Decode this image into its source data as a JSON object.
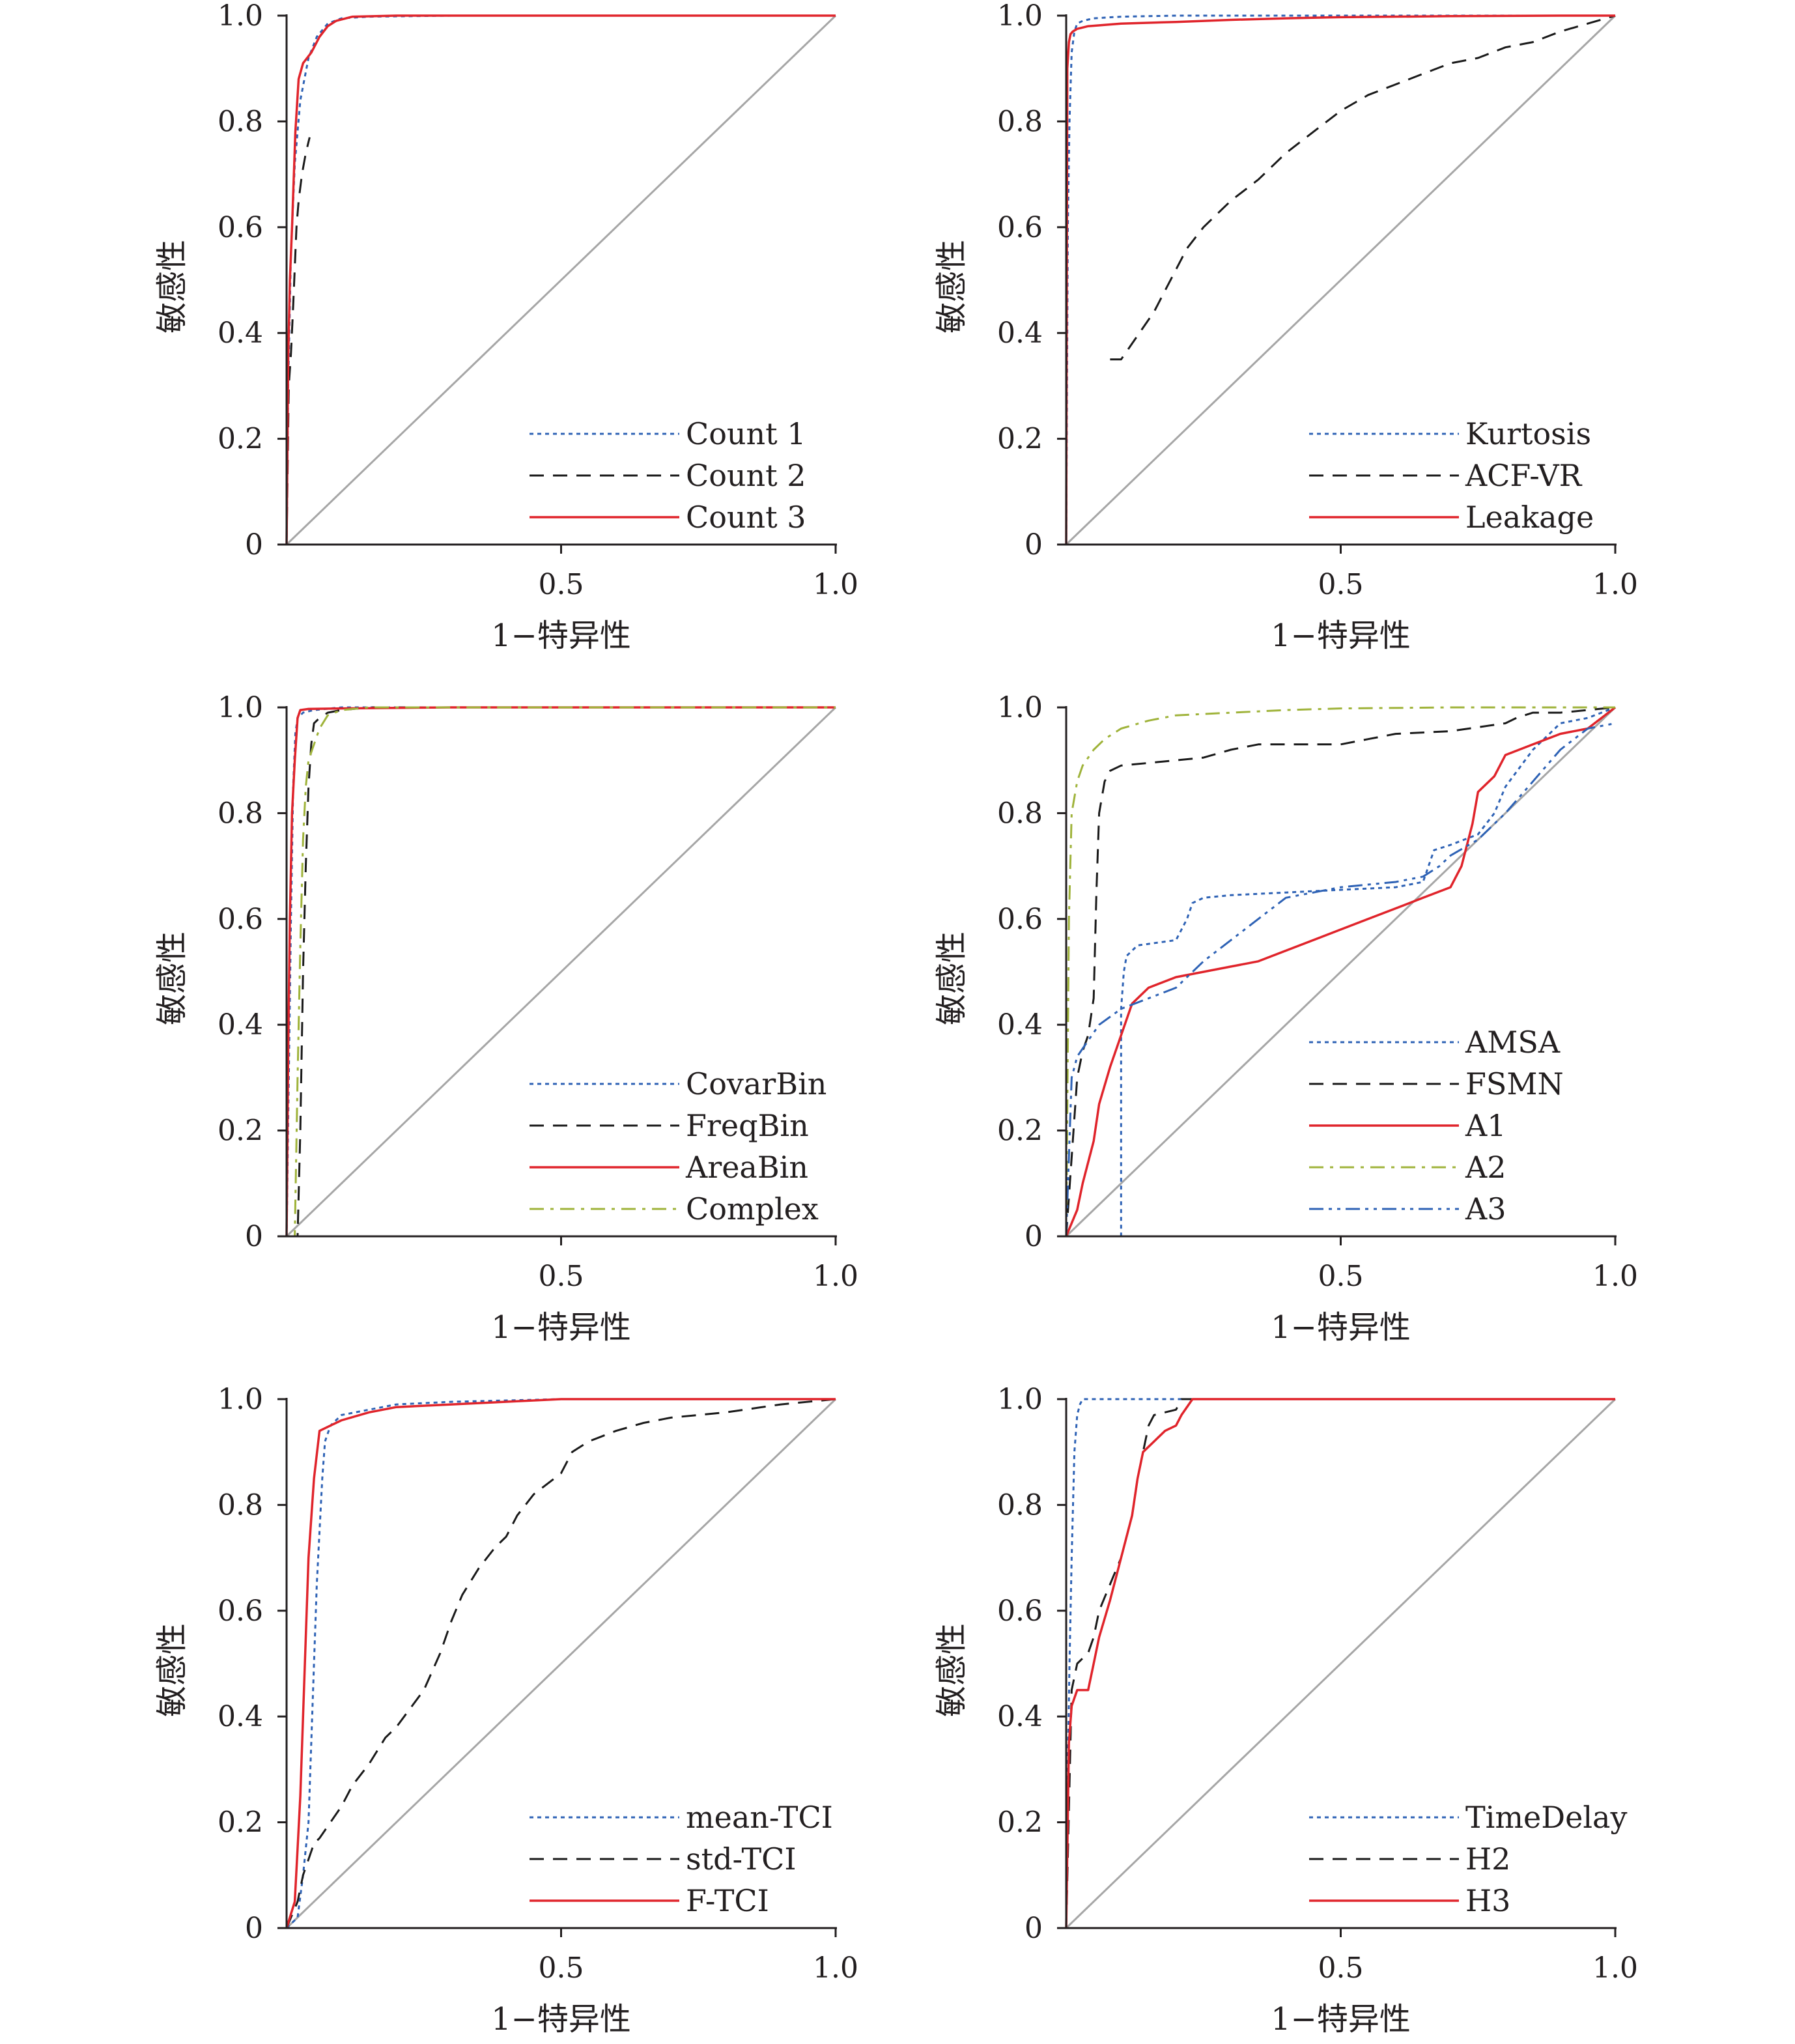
{
  "colors": {
    "axis": "#231f20",
    "diagonal": "#a6a6a6",
    "red": "#e0242b",
    "blue": "#2e62b5",
    "black": "#1a1a1a",
    "olive": "#9fb33a"
  },
  "chart_data": [
    {
      "type": "line",
      "xlabel": "1−特异性",
      "ylabel": "敏感性",
      "xlim": [
        0,
        1
      ],
      "ylim": [
        0,
        1
      ],
      "xticks": [
        "0.5",
        "1.0"
      ],
      "yticks": [
        "0",
        "0.2",
        "0.4",
        "0.6",
        "0.8",
        "1.0"
      ],
      "legend_position": "bottom-right",
      "diagonal": true,
      "series": [
        {
          "name": "Count 1",
          "color": "blue",
          "dash": "dotted",
          "x": [
            0,
            0.003,
            0.008,
            0.015,
            0.025,
            0.04,
            0.055,
            0.075,
            0.1,
            0.15,
            0.3,
            1.0
          ],
          "y": [
            0,
            0.3,
            0.55,
            0.72,
            0.84,
            0.92,
            0.96,
            0.985,
            0.995,
            0.998,
            1.0,
            1.0
          ]
        },
        {
          "name": "Count 2",
          "color": "black",
          "dash": "dashed",
          "x": [
            0,
            0.004,
            0.008,
            0.012,
            0.018,
            0.022,
            0.028,
            0.035,
            0.042
          ],
          "y": [
            0,
            0.3,
            0.36,
            0.45,
            0.6,
            0.65,
            0.7,
            0.74,
            0.77
          ]
        },
        {
          "name": "Count 3",
          "color": "red",
          "dash": "solid",
          "x": [
            0,
            0.003,
            0.006,
            0.01,
            0.016,
            0.022,
            0.03,
            0.045,
            0.06,
            0.075,
            0.09,
            0.12,
            0.2,
            1.0
          ],
          "y": [
            0,
            0.35,
            0.5,
            0.6,
            0.78,
            0.88,
            0.91,
            0.93,
            0.96,
            0.98,
            0.99,
            0.998,
            1.0,
            1.0
          ]
        }
      ]
    },
    {
      "type": "line",
      "xlabel": "1−特异性",
      "ylabel": "敏感性",
      "xlim": [
        0,
        1
      ],
      "ylim": [
        0,
        1
      ],
      "xticks": [
        "0.5",
        "1.0"
      ],
      "yticks": [
        "0",
        "0.2",
        "0.4",
        "0.6",
        "0.8",
        "1.0"
      ],
      "legend_position": "bottom-right",
      "diagonal": true,
      "series": [
        {
          "name": "Kurtosis",
          "color": "blue",
          "dash": "dotted",
          "x": [
            0,
            0.003,
            0.006,
            0.01,
            0.015,
            0.02,
            0.03,
            0.05,
            0.1,
            0.2,
            1.0
          ],
          "y": [
            0,
            0.6,
            0.8,
            0.93,
            0.97,
            0.985,
            0.99,
            0.995,
            0.998,
            1.0,
            1.0
          ]
        },
        {
          "name": "ACF-VR",
          "color": "black",
          "dash": "dashed",
          "x": [
            0.08,
            0.1,
            0.12,
            0.14,
            0.16,
            0.18,
            0.2,
            0.22,
            0.25,
            0.28,
            0.3,
            0.35,
            0.4,
            0.45,
            0.5,
            0.55,
            0.6,
            0.65,
            0.7,
            0.75,
            0.8,
            0.85,
            0.9,
            0.95,
            1.0
          ],
          "y": [
            0.35,
            0.35,
            0.38,
            0.41,
            0.44,
            0.48,
            0.52,
            0.56,
            0.6,
            0.63,
            0.65,
            0.69,
            0.74,
            0.78,
            0.82,
            0.85,
            0.87,
            0.89,
            0.91,
            0.92,
            0.94,
            0.95,
            0.97,
            0.985,
            1.0
          ]
        },
        {
          "name": "Leakage",
          "color": "red",
          "dash": "solid",
          "x": [
            0,
            0.002,
            0.005,
            0.008,
            0.012,
            0.02,
            0.04,
            0.1,
            0.2,
            0.3,
            0.4,
            0.5,
            0.7,
            0.9,
            1.0
          ],
          "y": [
            0,
            0.9,
            0.95,
            0.965,
            0.97,
            0.975,
            0.98,
            0.985,
            0.988,
            0.992,
            0.995,
            0.997,
            0.999,
            1.0,
            1.0
          ]
        }
      ]
    },
    {
      "type": "line",
      "xlabel": "1−特异性",
      "ylabel": "敏感性",
      "xlim": [
        0,
        1
      ],
      "ylim": [
        0,
        1
      ],
      "xticks": [
        "0.5",
        "1.0"
      ],
      "yticks": [
        "0",
        "0.2",
        "0.4",
        "0.6",
        "0.8",
        "1.0"
      ],
      "legend_position": "bottom-right",
      "diagonal": true,
      "series": [
        {
          "name": "CovarBin",
          "color": "blue",
          "dash": "dotted",
          "x": [
            0,
            0.004,
            0.008,
            0.012,
            0.016,
            0.02,
            0.03,
            0.05,
            0.1,
            1.0
          ],
          "y": [
            0,
            0.3,
            0.6,
            0.85,
            0.95,
            0.98,
            0.99,
            0.995,
            1.0,
            1.0
          ]
        },
        {
          "name": "FreqBin",
          "color": "black",
          "dash": "dashed",
          "x": [
            0,
            0.02,
            0.025,
            0.03,
            0.035,
            0.04,
            0.045,
            0.05,
            0.06,
            0.075,
            0.1,
            0.15,
            1.0
          ],
          "y": [
            0,
            0.0,
            0.2,
            0.5,
            0.7,
            0.85,
            0.93,
            0.97,
            0.98,
            0.99,
            0.995,
            1.0,
            1.0
          ]
        },
        {
          "name": "AreaBin",
          "color": "red",
          "dash": "solid",
          "x": [
            0,
            0.003,
            0.006,
            0.01,
            0.015,
            0.02,
            0.025,
            0.04,
            0.1,
            0.3,
            1.0
          ],
          "y": [
            0,
            0.35,
            0.6,
            0.8,
            0.9,
            0.98,
            0.995,
            0.997,
            0.998,
            1.0,
            1.0
          ]
        },
        {
          "name": "Complex",
          "color": "olive",
          "dash": "dashdot",
          "x": [
            0,
            0.015,
            0.02,
            0.025,
            0.03,
            0.035,
            0.04,
            0.05,
            0.06,
            0.075,
            0.1,
            0.15,
            1.0
          ],
          "y": [
            0,
            0.0,
            0.3,
            0.55,
            0.75,
            0.85,
            0.9,
            0.93,
            0.96,
            0.985,
            0.995,
            1.0,
            1.0
          ]
        }
      ]
    },
    {
      "type": "line",
      "xlabel": "1−特异性",
      "ylabel": "敏感性",
      "xlim": [
        0,
        1
      ],
      "ylim": [
        0,
        1
      ],
      "xticks": [
        "0.5",
        "1.0"
      ],
      "yticks": [
        "0",
        "0.2",
        "0.4",
        "0.6",
        "0.8",
        "1.0"
      ],
      "legend_position": "bottom-right",
      "diagonal": true,
      "series": [
        {
          "name": "AMSA",
          "color": "blue",
          "dash": "dotted",
          "x": [
            0,
            0.1,
            0.1,
            0.105,
            0.11,
            0.13,
            0.2,
            0.22,
            0.23,
            0.25,
            0.3,
            0.4,
            0.5,
            0.6,
            0.65,
            0.67,
            0.7,
            0.75,
            0.78,
            0.8,
            0.85,
            0.9,
            0.95,
            1.0
          ],
          "y": [
            0,
            0.0,
            0.43,
            0.5,
            0.53,
            0.55,
            0.56,
            0.6,
            0.63,
            0.64,
            0.645,
            0.65,
            0.655,
            0.66,
            0.67,
            0.73,
            0.74,
            0.76,
            0.8,
            0.85,
            0.92,
            0.97,
            0.98,
            1.0
          ]
        },
        {
          "name": "FSMN",
          "color": "black",
          "dash": "dashed",
          "x": [
            0,
            0.02,
            0.03,
            0.04,
            0.05,
            0.055,
            0.06,
            0.07,
            0.08,
            0.1,
            0.15,
            0.2,
            0.25,
            0.3,
            0.35,
            0.4,
            0.5,
            0.55,
            0.6,
            0.7,
            0.8,
            0.82,
            0.85,
            0.9,
            0.95,
            1.0
          ],
          "y": [
            0,
            0.3,
            0.35,
            0.38,
            0.45,
            0.65,
            0.8,
            0.86,
            0.88,
            0.89,
            0.895,
            0.9,
            0.905,
            0.92,
            0.93,
            0.93,
            0.93,
            0.94,
            0.95,
            0.955,
            0.97,
            0.98,
            0.99,
            0.99,
            0.995,
            1.0
          ]
        },
        {
          "name": "A1",
          "color": "red",
          "dash": "solid",
          "x": [
            0,
            0.02,
            0.03,
            0.05,
            0.06,
            0.08,
            0.1,
            0.12,
            0.15,
            0.2,
            0.25,
            0.3,
            0.35,
            0.4,
            0.5,
            0.55,
            0.6,
            0.65,
            0.7,
            0.72,
            0.74,
            0.75,
            0.78,
            0.8,
            0.85,
            0.9,
            0.95,
            1.0
          ],
          "y": [
            0,
            0.05,
            0.1,
            0.18,
            0.25,
            0.32,
            0.38,
            0.44,
            0.47,
            0.49,
            0.5,
            0.51,
            0.52,
            0.54,
            0.58,
            0.6,
            0.62,
            0.64,
            0.66,
            0.7,
            0.78,
            0.84,
            0.87,
            0.91,
            0.93,
            0.95,
            0.96,
            1.0
          ]
        },
        {
          "name": "A2",
          "color": "olive",
          "dash": "dashdot",
          "x": [
            0,
            0.005,
            0.01,
            0.02,
            0.03,
            0.05,
            0.07,
            0.1,
            0.15,
            0.2,
            0.3,
            0.4,
            0.5,
            0.7,
            1.0
          ],
          "y": [
            0,
            0.6,
            0.8,
            0.86,
            0.89,
            0.92,
            0.94,
            0.96,
            0.975,
            0.985,
            0.99,
            0.995,
            0.998,
            1.0,
            1.0
          ]
        },
        {
          "name": "A3",
          "color": "blue",
          "dash": "dashdotdot",
          "x": [
            0,
            0.01,
            0.02,
            0.04,
            0.06,
            0.1,
            0.15,
            0.2,
            0.25,
            0.3,
            0.35,
            0.4,
            0.5,
            0.6,
            0.65,
            0.68,
            0.7,
            0.75,
            0.8,
            0.85,
            0.9,
            0.95,
            1.0
          ],
          "y": [
            0,
            0.3,
            0.34,
            0.37,
            0.4,
            0.43,
            0.45,
            0.47,
            0.52,
            0.56,
            0.6,
            0.64,
            0.66,
            0.67,
            0.68,
            0.7,
            0.72,
            0.75,
            0.8,
            0.86,
            0.92,
            0.96,
            0.97
          ]
        }
      ]
    },
    {
      "type": "line",
      "xlabel": "1−特异性",
      "ylabel": "敏感性",
      "xlim": [
        0,
        1
      ],
      "ylim": [
        0,
        1
      ],
      "xticks": [
        "0.5",
        "1.0"
      ],
      "yticks": [
        "0",
        "0.2",
        "0.4",
        "0.6",
        "0.8",
        "1.0"
      ],
      "legend_position": "bottom-right",
      "diagonal": true,
      "series": [
        {
          "name": "mean-TCI",
          "color": "blue",
          "dash": "dotted",
          "x": [
            0,
            0.02,
            0.03,
            0.04,
            0.045,
            0.05,
            0.055,
            0.06,
            0.065,
            0.07,
            0.08,
            0.1,
            0.15,
            0.2,
            0.3,
            0.5,
            1.0
          ],
          "y": [
            0,
            0.02,
            0.1,
            0.2,
            0.35,
            0.5,
            0.65,
            0.75,
            0.85,
            0.92,
            0.95,
            0.97,
            0.98,
            0.99,
            0.995,
            1.0,
            1.0
          ]
        },
        {
          "name": "std-TCI",
          "color": "black",
          "dash": "dashed",
          "x": [
            0,
            0.02,
            0.03,
            0.05,
            0.06,
            0.08,
            0.1,
            0.12,
            0.15,
            0.18,
            0.2,
            0.25,
            0.28,
            0.3,
            0.32,
            0.35,
            0.38,
            0.4,
            0.42,
            0.45,
            0.5,
            0.52,
            0.55,
            0.6,
            0.65,
            0.7,
            0.8,
            0.9,
            1.0
          ],
          "y": [
            0,
            0.05,
            0.1,
            0.16,
            0.17,
            0.2,
            0.23,
            0.27,
            0.31,
            0.36,
            0.38,
            0.45,
            0.52,
            0.58,
            0.63,
            0.68,
            0.72,
            0.74,
            0.78,
            0.82,
            0.86,
            0.9,
            0.92,
            0.94,
            0.955,
            0.965,
            0.975,
            0.99,
            1.0
          ]
        },
        {
          "name": "F-TCI",
          "color": "red",
          "dash": "solid",
          "x": [
            0,
            0.015,
            0.02,
            0.025,
            0.03,
            0.035,
            0.04,
            0.05,
            0.06,
            0.08,
            0.1,
            0.15,
            0.2,
            0.3,
            0.5,
            1.0
          ],
          "y": [
            0,
            0.05,
            0.15,
            0.25,
            0.4,
            0.55,
            0.7,
            0.85,
            0.94,
            0.95,
            0.96,
            0.975,
            0.985,
            0.99,
            1.0,
            1.0
          ]
        }
      ]
    },
    {
      "type": "line",
      "xlabel": "1−特异性",
      "ylabel": "敏感性",
      "xlim": [
        0,
        1
      ],
      "ylim": [
        0,
        1
      ],
      "xticks": [
        "0.5",
        "1.0"
      ],
      "yticks": [
        "0",
        "0.2",
        "0.4",
        "0.6",
        "0.8",
        "1.0"
      ],
      "legend_position": "bottom-right",
      "diagonal": true,
      "series": [
        {
          "name": "TimeDelay",
          "color": "blue",
          "dash": "dotted",
          "x": [
            0,
            0.003,
            0.006,
            0.01,
            0.015,
            0.02,
            0.025,
            0.03,
            0.1,
            0.2,
            1.0
          ],
          "y": [
            0,
            0.3,
            0.5,
            0.7,
            0.9,
            0.97,
            0.99,
            1.0,
            1.0,
            1.0,
            1.0
          ]
        },
        {
          "name": "H2",
          "color": "black",
          "dash": "dashed",
          "x": [
            0,
            0.01,
            0.02,
            0.04,
            0.05,
            0.06,
            0.08,
            0.1,
            0.12,
            0.13,
            0.14,
            0.15,
            0.16,
            0.2,
            0.21,
            0.25,
            1.0
          ],
          "y": [
            0,
            0.45,
            0.5,
            0.52,
            0.55,
            0.6,
            0.65,
            0.7,
            0.78,
            0.85,
            0.9,
            0.95,
            0.97,
            0.98,
            1.0,
            1.0,
            1.0
          ]
        },
        {
          "name": "H3",
          "color": "red",
          "dash": "solid",
          "x": [
            0,
            0.005,
            0.01,
            0.02,
            0.04,
            0.05,
            0.06,
            0.08,
            0.1,
            0.12,
            0.13,
            0.14,
            0.16,
            0.18,
            0.2,
            0.21,
            0.23,
            0.3,
            1.0
          ],
          "y": [
            0,
            0.35,
            0.42,
            0.45,
            0.45,
            0.5,
            0.55,
            0.62,
            0.7,
            0.78,
            0.85,
            0.9,
            0.92,
            0.94,
            0.95,
            0.97,
            1.0,
            1.0,
            1.0
          ]
        }
      ]
    }
  ]
}
